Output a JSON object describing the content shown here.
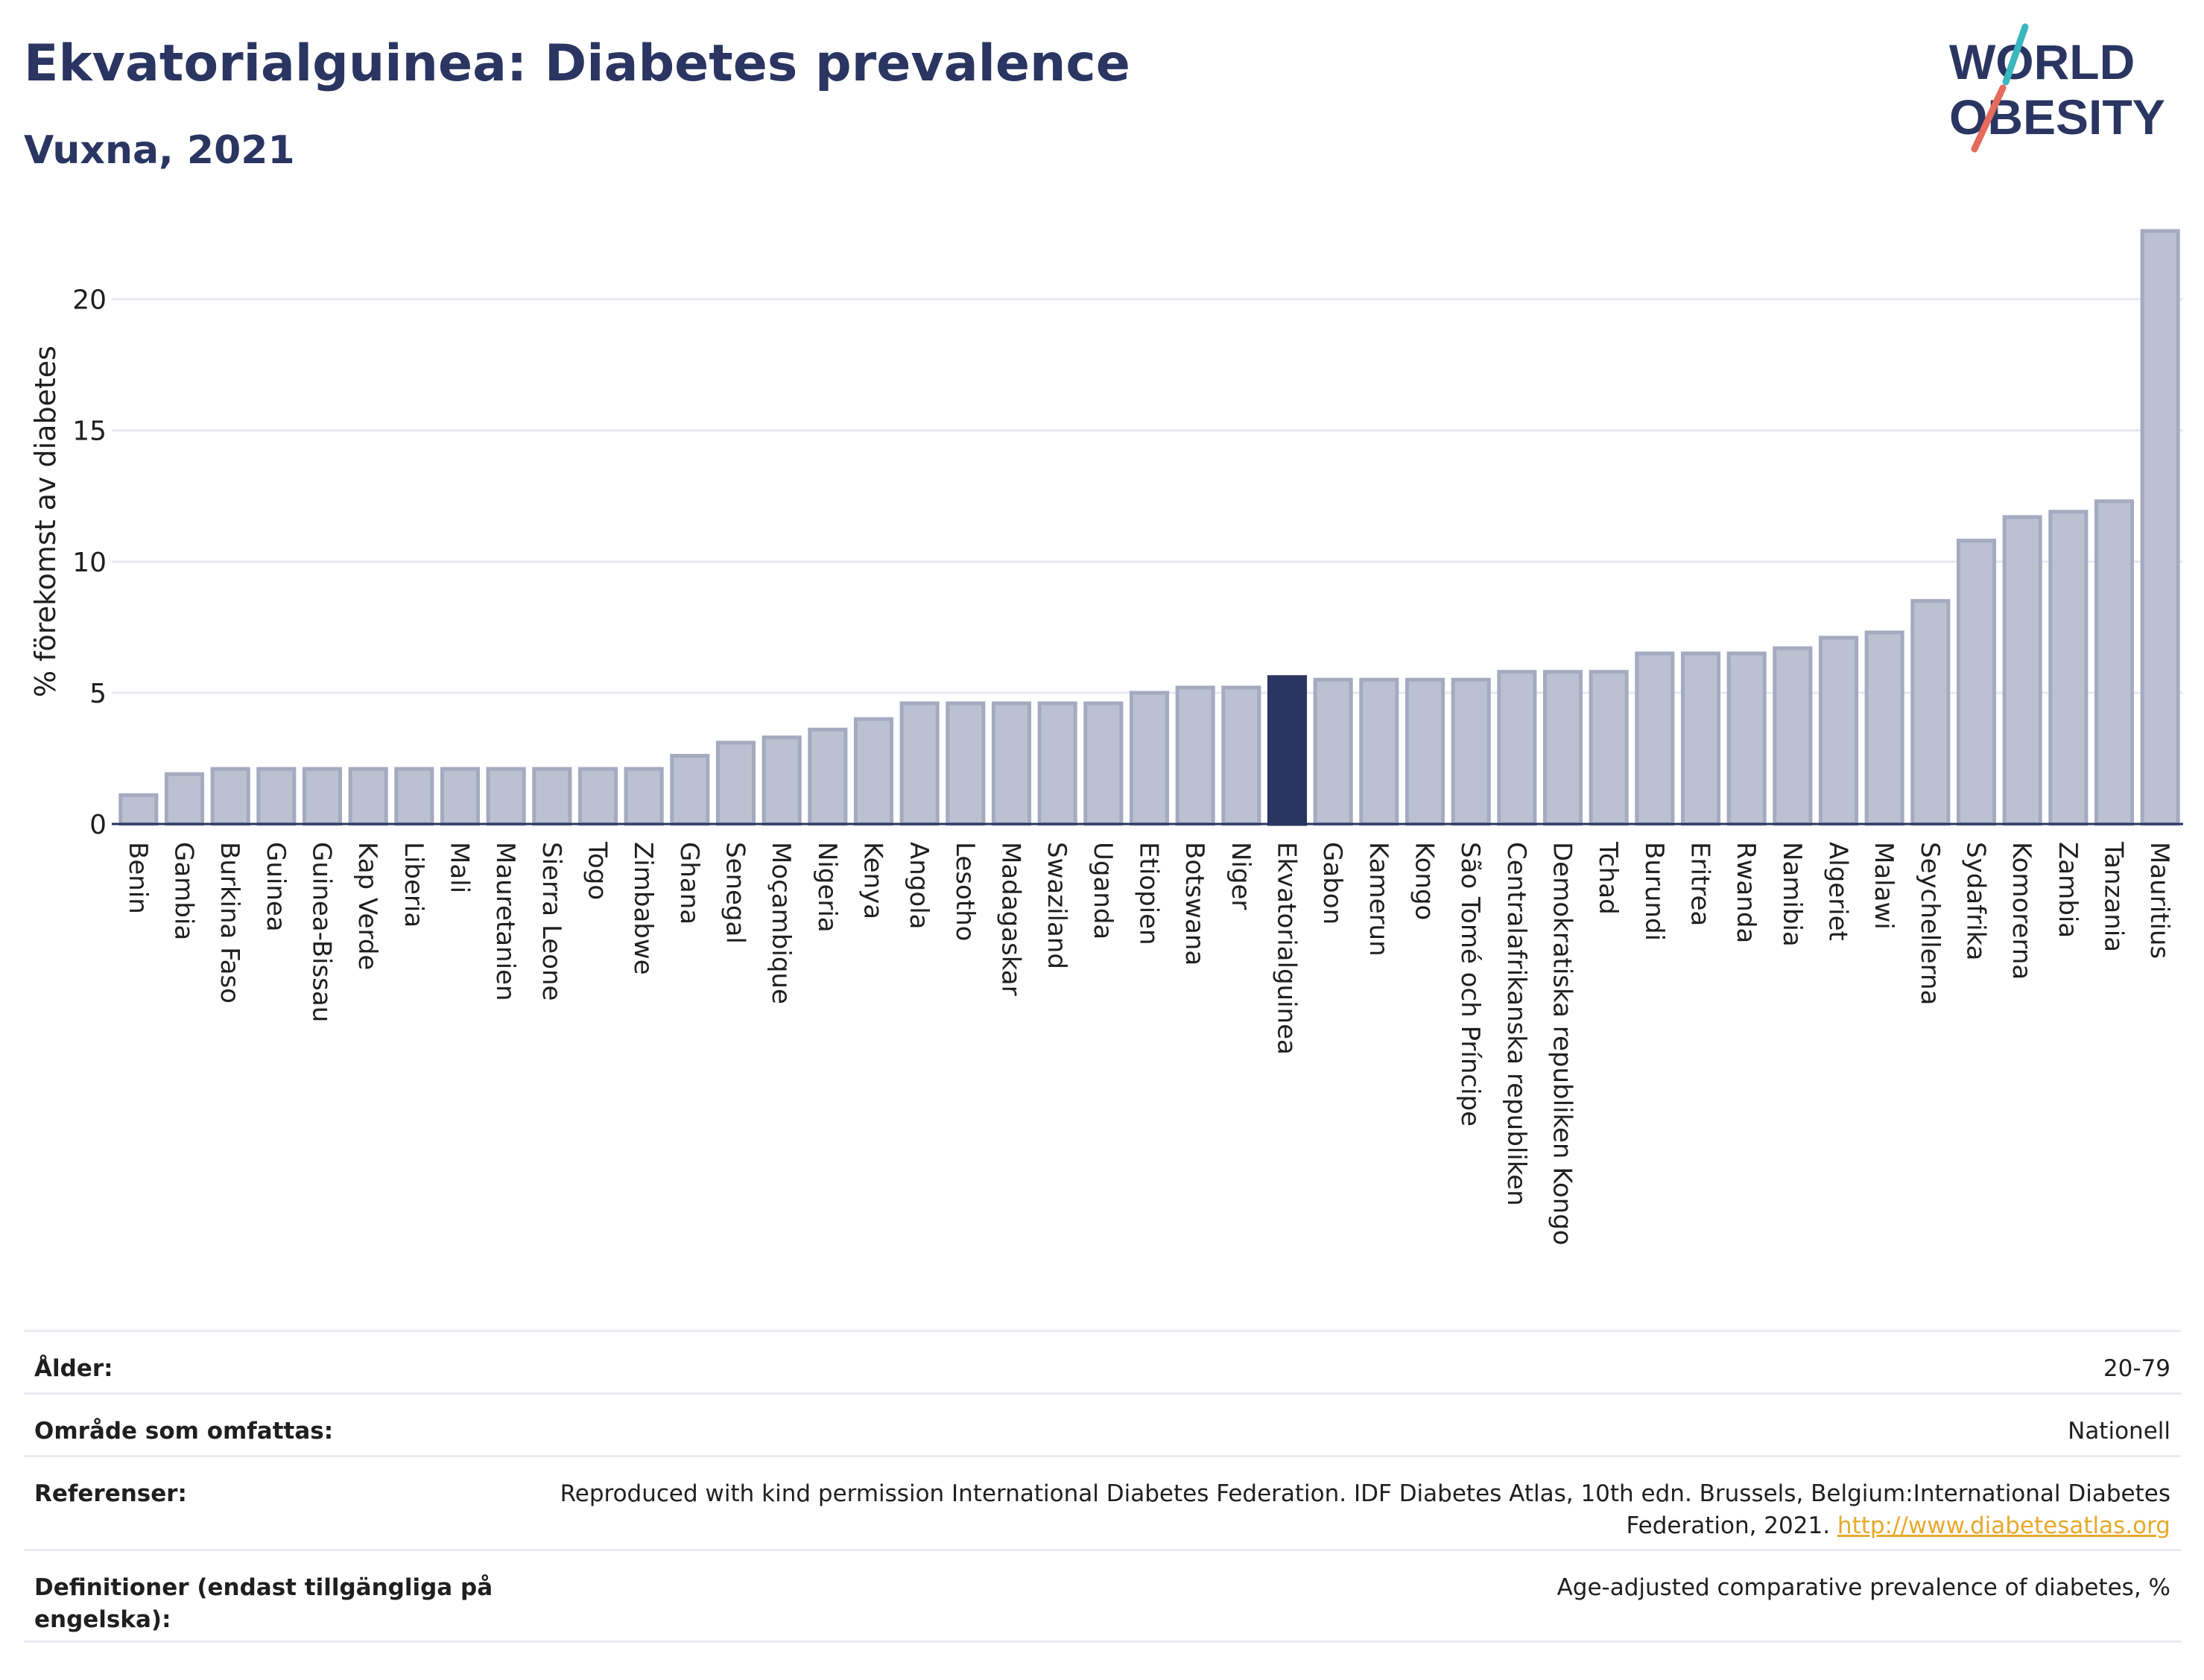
{
  "header": {
    "title": "Ekvatorialguinea: Diabetes prevalence",
    "subtitle": "Vuxna, 2021"
  },
  "logo": {
    "line1": "WORLD",
    "line2": "OBESITY"
  },
  "colors": {
    "bar": "#bcc1d1",
    "bar_border": "#a4aac0",
    "highlight": "#2a3561",
    "title": "#2a3561",
    "link": "#e7a92c"
  },
  "chart_data": {
    "type": "bar",
    "ylabel": "% förekomst av diabetes",
    "xlabel": "",
    "ylim": [
      0,
      23
    ],
    "yticks": [
      0,
      5,
      10,
      15,
      20
    ],
    "grid": true,
    "highlight_category": "Ekvatorialguinea",
    "categories": [
      "Benin",
      "Gambia",
      "Burkina Faso",
      "Guinea",
      "Guinea-Bissau",
      "Kap Verde",
      "Liberia",
      "Mali",
      "Mauretanien",
      "Sierra Leone",
      "Togo",
      "Zimbabwe",
      "Ghana",
      "Senegal",
      "Moçambique",
      "Nigeria",
      "Kenya",
      "Angola",
      "Lesotho",
      "Madagaskar",
      "Swaziland",
      "Uganda",
      "Etiopien",
      "Botswana",
      "Niger",
      "Ekvatorialguinea",
      "Gabon",
      "Kamerun",
      "Kongo",
      "São Tomé och Príncipe",
      "Centralafrikanska republiken",
      "Demokratiska republiken Kongo",
      "Tchad",
      "Burundi",
      "Eritrea",
      "Rwanda",
      "Namibia",
      "Algeriet",
      "Malawi",
      "Seychellerna",
      "Sydafrika",
      "Komorerna",
      "Zambia",
      "Tanzania",
      "Mauritius"
    ],
    "values": [
      1.1,
      1.9,
      2.1,
      2.1,
      2.1,
      2.1,
      2.1,
      2.1,
      2.1,
      2.1,
      2.1,
      2.1,
      2.6,
      3.1,
      3.3,
      3.6,
      4.0,
      4.6,
      4.6,
      4.6,
      4.6,
      4.6,
      5.0,
      5.2,
      5.2,
      5.6,
      5.5,
      5.5,
      5.5,
      5.5,
      5.8,
      5.8,
      5.8,
      6.5,
      6.5,
      6.5,
      6.7,
      7.1,
      7.3,
      8.5,
      10.8,
      11.7,
      11.9,
      12.3,
      22.6
    ]
  },
  "meta": [
    {
      "label": "Ålder:",
      "value": "20-79"
    },
    {
      "label": "Område som omfattas:",
      "value": "Nationell"
    },
    {
      "label": "Referenser:",
      "value": "Reproduced with kind permission International Diabetes Federation.  IDF Diabetes Atlas, 10th edn. Brussels, Belgium:International Diabetes Federation, 2021.",
      "link": "http://www.diabetesatlas.org"
    },
    {
      "label": "Definitioner (endast tillgängliga på engelska):",
      "value": "Age-adjusted comparative prevalence of diabetes, %"
    }
  ]
}
